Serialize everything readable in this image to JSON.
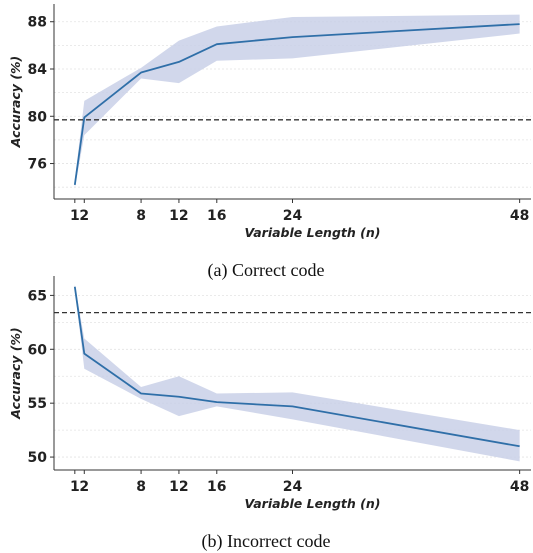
{
  "chart_data": [
    {
      "type": "line",
      "caption": "(a) Correct code",
      "xlabel": "Variable Length (n)",
      "ylabel": "Accuracy (%)",
      "x": [
        1,
        2,
        8,
        12,
        16,
        24,
        48
      ],
      "xticks": [
        1,
        2,
        8,
        12,
        16,
        24,
        48
      ],
      "yticks": [
        76,
        80,
        84,
        88
      ],
      "ylim": [
        73,
        89.5
      ],
      "xlim": [
        -1.2,
        49.2
      ],
      "series": [
        {
          "values": [
            74.2,
            79.9,
            83.7,
            84.6,
            86.1,
            86.7,
            87.8
          ],
          "lower": [
            73.9,
            78.4,
            83.2,
            82.8,
            84.7,
            84.9,
            87.0
          ],
          "upper": [
            74.6,
            81.3,
            84.1,
            86.4,
            87.6,
            88.4,
            88.6
          ],
          "color": "#2f6fa8",
          "band_color": "#c9d0e8"
        }
      ],
      "reference_line": {
        "y": 79.7,
        "style": "dashed",
        "color": "#333333"
      },
      "grid": true
    },
    {
      "type": "line",
      "caption": "(b) Incorrect code",
      "xlabel": "Variable Length (n)",
      "ylabel": "Accuracy (%)",
      "x": [
        1,
        2,
        8,
        12,
        16,
        24,
        48
      ],
      "xticks": [
        1,
        2,
        8,
        12,
        16,
        24,
        48
      ],
      "yticks": [
        50,
        55,
        60,
        65
      ],
      "ylim": [
        48.8,
        66.8
      ],
      "xlim": [
        -1.2,
        49.2
      ],
      "series": [
        {
          "values": [
            65.8,
            59.6,
            55.9,
            55.6,
            55.1,
            54.7,
            51.0
          ],
          "lower": [
            65.6,
            58.2,
            55.4,
            53.8,
            54.7,
            53.5,
            49.6
          ],
          "upper": [
            66.0,
            61.0,
            56.5,
            57.5,
            55.9,
            56.0,
            52.5
          ],
          "color": "#2f6fa8",
          "band_color": "#c9d0e8"
        }
      ],
      "reference_line": {
        "y": 63.4,
        "style": "dashed",
        "color": "#333333"
      },
      "grid": true
    }
  ]
}
